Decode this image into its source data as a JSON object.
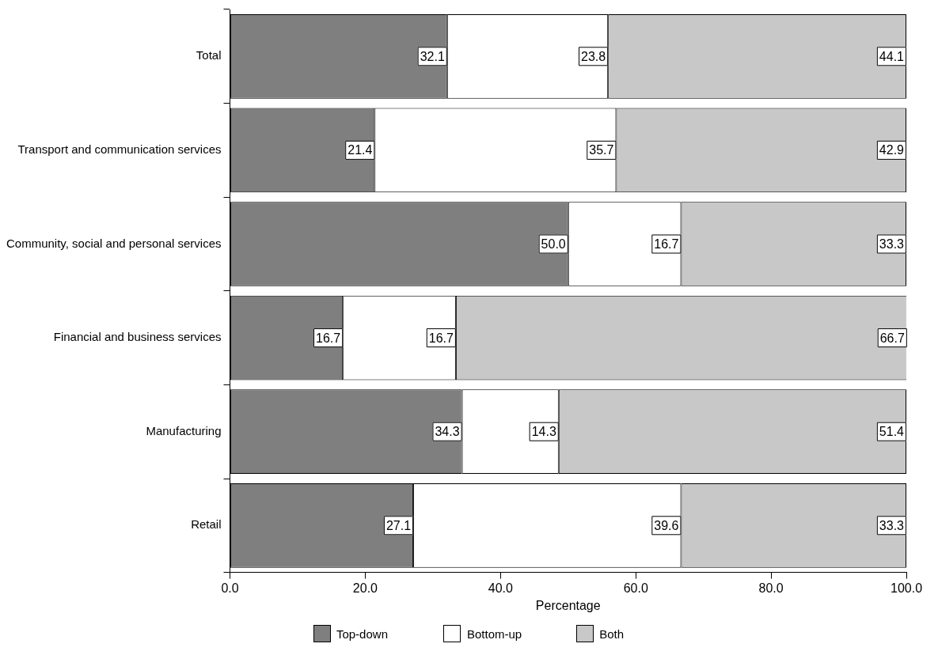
{
  "chart_data": {
    "type": "bar",
    "orientation": "horizontal",
    "stacked": true,
    "xlabel": "Percentage",
    "categories": [
      "Total",
      "Transport and communication services",
      "Community, social and personal services",
      "Financial and business services",
      "Manufacturing",
      "Retail"
    ],
    "series": [
      {
        "name": "Top-down",
        "color": "#7f7f7f",
        "values": [
          32.1,
          21.4,
          50.0,
          16.7,
          34.3,
          27.1
        ],
        "value_labels": [
          "32.1",
          "21.4",
          "50.0",
          "16.7",
          "34.3",
          "27.1"
        ]
      },
      {
        "name": "Bottom-up",
        "color": "#ffffff",
        "values": [
          23.8,
          35.7,
          16.7,
          16.7,
          14.3,
          39.6
        ],
        "value_labels": [
          "23.8",
          "35.7",
          "16.7",
          "16.7",
          "14.3",
          "39.6"
        ]
      },
      {
        "name": "Both",
        "color": "#c8c8c8",
        "values": [
          44.1,
          42.9,
          33.3,
          66.7,
          51.4,
          33.3
        ],
        "value_labels": [
          "44.1",
          "42.9",
          "33.3",
          "66.7",
          "51.4",
          "33.3"
        ]
      }
    ],
    "xlim": [
      0,
      100
    ],
    "xticks": [
      {
        "value": 0,
        "label": "0.0"
      },
      {
        "value": 20,
        "label": "20.0"
      },
      {
        "value": 40,
        "label": "40.0"
      },
      {
        "value": 60,
        "label": "60.0"
      },
      {
        "value": 80,
        "label": "80.0"
      },
      {
        "value": 100,
        "label": "100.0"
      }
    ],
    "grid": false,
    "legend": "bottom"
  }
}
